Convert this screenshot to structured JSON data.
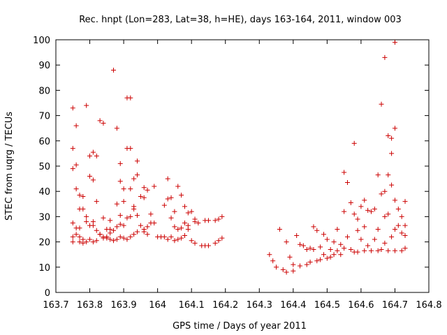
{
  "chart_data": {
    "type": "scatter",
    "title": "Rec. hnpt (Lon=283, Lat=38, h=HE), days 163-164, 2011, window 003",
    "xlabel": "GPS time / Days of year 2011",
    "ylabel": "STEC from uqrg / TECUs",
    "xlim": [
      163.7,
      164.8
    ],
    "ylim": [
      0,
      100
    ],
    "x_ticks": [
      "163.7",
      "163.8",
      "163.9",
      "164",
      "164.1",
      "164.2",
      "164.3",
      "164.4",
      "164.5",
      "164.6",
      "164.7",
      "164.8"
    ],
    "y_ticks": [
      "0",
      "10",
      "20",
      "30",
      "40",
      "50",
      "60",
      "70",
      "80",
      "90",
      "100"
    ],
    "grid": false,
    "marker": "plus",
    "marker_color": "#cc0000",
    "series": [
      {
        "points": [
          [
            163.75,
            73
          ],
          [
            163.75,
            57
          ],
          [
            163.75,
            49
          ],
          [
            163.76,
            66
          ],
          [
            163.76,
            50.5
          ],
          [
            163.76,
            41
          ],
          [
            163.77,
            38.5
          ],
          [
            163.77,
            33
          ],
          [
            163.78,
            38
          ],
          [
            163.78,
            33
          ],
          [
            163.79,
            74
          ],
          [
            163.79,
            30
          ],
          [
            163.8,
            54
          ],
          [
            163.8,
            46
          ],
          [
            163.81,
            55.5
          ],
          [
            163.81,
            44.5
          ],
          [
            163.81,
            28
          ],
          [
            163.82,
            54
          ],
          [
            163.82,
            36
          ],
          [
            163.83,
            68
          ],
          [
            163.84,
            67
          ],
          [
            163.84,
            29.5
          ],
          [
            163.85,
            25
          ],
          [
            163.86,
            25
          ],
          [
            163.86,
            28.5
          ],
          [
            163.87,
            88
          ],
          [
            163.88,
            65
          ],
          [
            163.88,
            35
          ],
          [
            163.89,
            51
          ],
          [
            163.89,
            44
          ],
          [
            163.89,
            30.5
          ],
          [
            163.9,
            41
          ],
          [
            163.9,
            36
          ],
          [
            163.91,
            77
          ],
          [
            163.91,
            57
          ],
          [
            163.92,
            77
          ],
          [
            163.92,
            57
          ],
          [
            163.92,
            41
          ],
          [
            163.93,
            45
          ],
          [
            163.93,
            34
          ],
          [
            163.94,
            52
          ],
          [
            163.94,
            46.5
          ],
          [
            163.95,
            38
          ],
          [
            163.96,
            41.5
          ],
          [
            163.96,
            37.5
          ],
          [
            163.97,
            40.5
          ],
          [
            163.98,
            31
          ],
          [
            163.99,
            27.5
          ],
          [
            163.99,
            42
          ],
          [
            164.03,
            45
          ],
          [
            164.03,
            37
          ],
          [
            164.04,
            37.5
          ],
          [
            164.05,
            32
          ],
          [
            164.06,
            42
          ],
          [
            164.07,
            38.5
          ],
          [
            164.08,
            34
          ],
          [
            164.09,
            31.5
          ],
          [
            164.1,
            32
          ],
          [
            164.11,
            29
          ],
          [
            163.75,
            27.5
          ],
          [
            163.76,
            25.5
          ],
          [
            163.77,
            25.5
          ],
          [
            163.78,
            21
          ],
          [
            163.79,
            28
          ],
          [
            163.8,
            26.5
          ],
          [
            163.81,
            26.5
          ],
          [
            163.82,
            24.5
          ],
          [
            163.83,
            23
          ],
          [
            163.84,
            22
          ],
          [
            163.85,
            22
          ],
          [
            163.86,
            23.5
          ],
          [
            163.87,
            24.5
          ],
          [
            163.88,
            26
          ],
          [
            163.89,
            27
          ],
          [
            163.9,
            26.5
          ],
          [
            163.91,
            29.5
          ],
          [
            163.92,
            30
          ],
          [
            163.93,
            33
          ],
          [
            163.94,
            30.5
          ],
          [
            163.95,
            26.5
          ],
          [
            163.96,
            25
          ],
          [
            163.97,
            26
          ],
          [
            163.98,
            27.5
          ],
          [
            164.02,
            34.5
          ],
          [
            164.04,
            29.5
          ],
          [
            164.05,
            26
          ],
          [
            164.06,
            25
          ],
          [
            164.07,
            25.5
          ],
          [
            164.08,
            27.5
          ],
          [
            164.09,
            26.5
          ],
          [
            164.11,
            28
          ],
          [
            164.12,
            27.5
          ],
          [
            164.14,
            28.5
          ],
          [
            164.15,
            28.5
          ],
          [
            164.17,
            28.5
          ],
          [
            164.18,
            29
          ],
          [
            164.19,
            30
          ],
          [
            163.75,
            22
          ],
          [
            163.75,
            20
          ],
          [
            163.76,
            23
          ],
          [
            163.77,
            20
          ],
          [
            163.77,
            22
          ],
          [
            163.78,
            19.5
          ],
          [
            163.79,
            20
          ],
          [
            163.8,
            21
          ],
          [
            163.81,
            20
          ],
          [
            163.82,
            20.5
          ],
          [
            163.83,
            23
          ],
          [
            163.84,
            21.5
          ],
          [
            163.85,
            21.5
          ],
          [
            163.86,
            21
          ],
          [
            163.87,
            20.5
          ],
          [
            163.88,
            21
          ],
          [
            163.89,
            22
          ],
          [
            163.9,
            21.5
          ],
          [
            163.91,
            21
          ],
          [
            163.92,
            22
          ],
          [
            163.93,
            23
          ],
          [
            163.94,
            24
          ],
          [
            163.96,
            24
          ],
          [
            163.97,
            23
          ],
          [
            164.0,
            22
          ],
          [
            164.01,
            22
          ],
          [
            164.02,
            22
          ],
          [
            164.03,
            21
          ],
          [
            164.04,
            22
          ],
          [
            164.05,
            20.5
          ],
          [
            164.06,
            21
          ],
          [
            164.07,
            21.5
          ],
          [
            164.08,
            22.5
          ],
          [
            164.09,
            25
          ],
          [
            164.1,
            20.5
          ],
          [
            164.11,
            19.5
          ],
          [
            164.13,
            18.5
          ],
          [
            164.14,
            18.5
          ],
          [
            164.15,
            18.5
          ],
          [
            164.17,
            19.5
          ],
          [
            164.18,
            20.5
          ],
          [
            164.19,
            21.5
          ],
          [
            164.33,
            15
          ],
          [
            164.34,
            12.5
          ],
          [
            164.35,
            10
          ],
          [
            164.36,
            25
          ],
          [
            164.37,
            9
          ],
          [
            164.38,
            8
          ],
          [
            164.38,
            20
          ],
          [
            164.39,
            14
          ],
          [
            164.4,
            8.5
          ],
          [
            164.4,
            11
          ],
          [
            164.41,
            22.5
          ],
          [
            164.42,
            19
          ],
          [
            164.42,
            10.5
          ],
          [
            164.43,
            18.5
          ],
          [
            164.44,
            17
          ],
          [
            164.44,
            11
          ],
          [
            164.45,
            17.5
          ],
          [
            164.45,
            12
          ],
          [
            164.46,
            26
          ],
          [
            164.46,
            17
          ],
          [
            164.47,
            24.5
          ],
          [
            164.47,
            12.5
          ],
          [
            164.48,
            18
          ],
          [
            164.48,
            13
          ],
          [
            164.49,
            23
          ],
          [
            164.49,
            15
          ],
          [
            164.5,
            21
          ],
          [
            164.5,
            13.5
          ],
          [
            164.51,
            17
          ],
          [
            164.51,
            14
          ],
          [
            164.52,
            20
          ],
          [
            164.52,
            15
          ],
          [
            164.53,
            25
          ],
          [
            164.53,
            16.5
          ],
          [
            164.54,
            19
          ],
          [
            164.54,
            15
          ],
          [
            164.55,
            47.5
          ],
          [
            164.55,
            32
          ],
          [
            164.55,
            17.5
          ],
          [
            164.56,
            43.5
          ],
          [
            164.56,
            22
          ],
          [
            164.57,
            35.5
          ],
          [
            164.57,
            17
          ],
          [
            164.58,
            59
          ],
          [
            164.58,
            31
          ],
          [
            164.58,
            16
          ],
          [
            164.59,
            29
          ],
          [
            164.59,
            24.5
          ],
          [
            164.59,
            16
          ],
          [
            164.6,
            34
          ],
          [
            164.6,
            21
          ],
          [
            164.61,
            36.5
          ],
          [
            164.61,
            26
          ],
          [
            164.61,
            16.5
          ],
          [
            164.62,
            32.5
          ],
          [
            164.62,
            18.5
          ],
          [
            164.63,
            32
          ],
          [
            164.63,
            16.5
          ],
          [
            164.64,
            33
          ],
          [
            164.64,
            21
          ],
          [
            164.65,
            46.5
          ],
          [
            164.65,
            25
          ],
          [
            164.65,
            16.5
          ],
          [
            164.66,
            74.5
          ],
          [
            164.66,
            39
          ],
          [
            164.66,
            17
          ],
          [
            164.67,
            93
          ],
          [
            164.67,
            40
          ],
          [
            164.67,
            30
          ],
          [
            164.67,
            19.5
          ],
          [
            164.68,
            62
          ],
          [
            164.68,
            46.5
          ],
          [
            164.68,
            31
          ],
          [
            164.68,
            16.5
          ],
          [
            164.69,
            61
          ],
          [
            164.69,
            55
          ],
          [
            164.69,
            42.5
          ],
          [
            164.69,
            22
          ],
          [
            164.7,
            99
          ],
          [
            164.7,
            65
          ],
          [
            164.7,
            36.5
          ],
          [
            164.7,
            25
          ],
          [
            164.7,
            16.5
          ],
          [
            164.71,
            33
          ],
          [
            164.71,
            26.5
          ],
          [
            164.72,
            30
          ],
          [
            164.72,
            23.5
          ],
          [
            164.72,
            16.5
          ],
          [
            164.73,
            36
          ],
          [
            164.73,
            26.5
          ],
          [
            164.73,
            22.5
          ],
          [
            164.73,
            17.5
          ]
        ]
      }
    ]
  }
}
